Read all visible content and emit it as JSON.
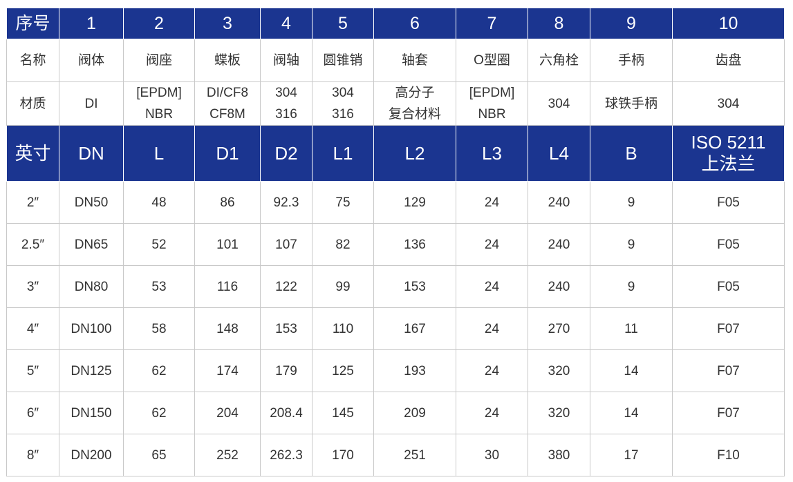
{
  "header_row": {
    "label": "序号",
    "cols": [
      "1",
      "2",
      "3",
      "4",
      "5",
      "6",
      "7",
      "8",
      "9",
      "10"
    ]
  },
  "name_row": {
    "label": "名称",
    "cols": [
      "阀体",
      "阀座",
      "蝶板",
      "阀轴",
      "圆锥销",
      "轴套",
      "O型圈",
      "六角栓",
      "手柄",
      "齿盘"
    ]
  },
  "material_row": {
    "label": "材质",
    "cols": [
      [
        "DI"
      ],
      [
        "[EPDM]",
        "NBR"
      ],
      [
        "DI/CF8",
        "CF8M"
      ],
      [
        "304",
        "316"
      ],
      [
        "304",
        "316"
      ],
      [
        "高分子",
        "复合材料"
      ],
      [
        "[EPDM]",
        "NBR"
      ],
      [
        "304"
      ],
      [
        "球铁手柄"
      ],
      [
        "304"
      ]
    ]
  },
  "dim_header": {
    "cols": [
      [
        "英寸"
      ],
      [
        "DN"
      ],
      [
        "L"
      ],
      [
        "D1"
      ],
      [
        "D2"
      ],
      [
        "L1"
      ],
      [
        "L2"
      ],
      [
        "L3"
      ],
      [
        "L4"
      ],
      [
        "B"
      ],
      [
        "ISO 5211",
        "上法兰"
      ]
    ]
  },
  "rows": [
    [
      "2″",
      "DN50",
      "48",
      "86",
      "92.3",
      "75",
      "129",
      "24",
      "240",
      "9",
      "F05"
    ],
    [
      "2.5″",
      "DN65",
      "52",
      "101",
      "107",
      "82",
      "136",
      "24",
      "240",
      "9",
      "F05"
    ],
    [
      "3″",
      "DN80",
      "53",
      "116",
      "122",
      "99",
      "153",
      "24",
      "240",
      "9",
      "F05"
    ],
    [
      "4″",
      "DN100",
      "58",
      "148",
      "153",
      "110",
      "167",
      "24",
      "270",
      "11",
      "F07"
    ],
    [
      "5″",
      "DN125",
      "62",
      "174",
      "179",
      "125",
      "193",
      "24",
      "320",
      "14",
      "F07"
    ],
    [
      "6″",
      "DN150",
      "62",
      "204",
      "208.4",
      "145",
      "209",
      "24",
      "320",
      "14",
      "F07"
    ],
    [
      "8″",
      "DN200",
      "65",
      "252",
      "262.3",
      "170",
      "251",
      "30",
      "380",
      "17",
      "F10"
    ]
  ],
  "colors": {
    "header_bg": "#1b3590",
    "header_text": "#ffffff",
    "grid": "#c9c9c9",
    "text": "#333333"
  }
}
